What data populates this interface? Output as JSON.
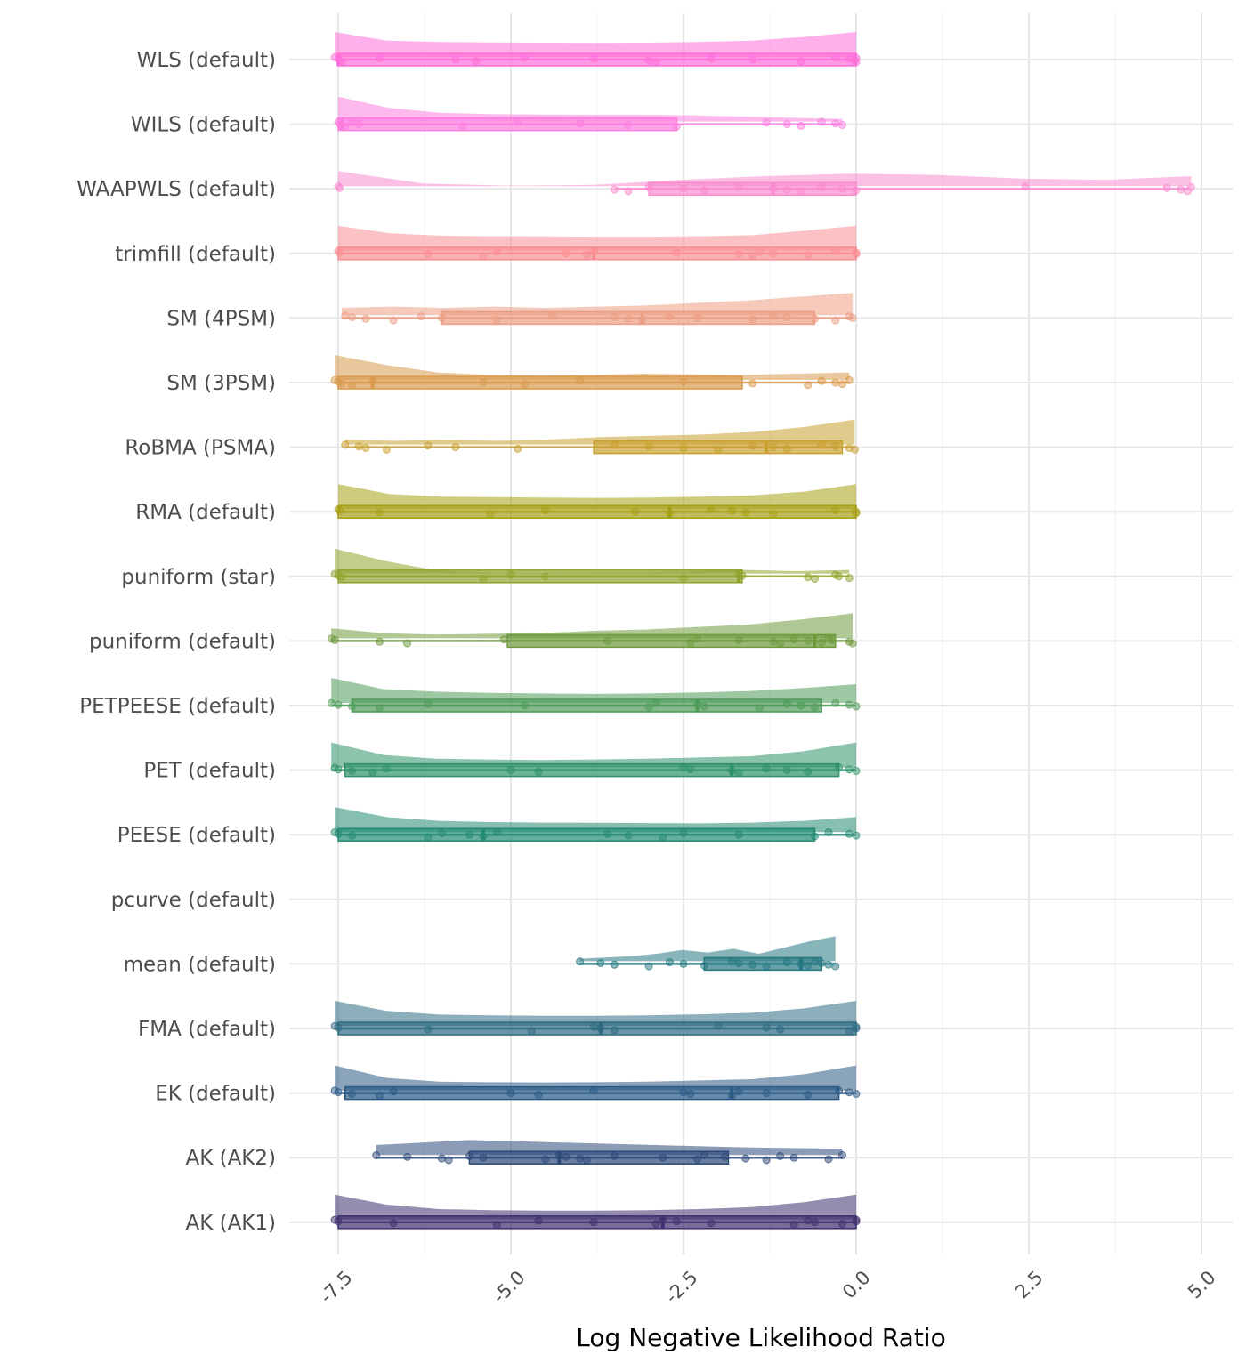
{
  "chart_data": {
    "type": "raincloud",
    "title": "",
    "xlabel": "Log Negative Likelihood Ratio",
    "ylabel": "",
    "xlim": [
      -8.0,
      5.4
    ],
    "x_ticks": [
      -7.5,
      -5.0,
      -2.5,
      0.0,
      2.5,
      5.0
    ],
    "x_tick_labels": [
      "-7.5",
      "-5.0",
      "-2.5",
      "0.0",
      "2.5",
      "5.0"
    ],
    "grid": true,
    "categories": [
      {
        "name": "WLS (default)",
        "color": "#FF6ED8",
        "min": -7.55,
        "q1": -7.5,
        "median": -7.5,
        "q3": 0.0,
        "max": 0.0,
        "density": [
          1.0,
          0.65,
          0.6,
          0.58,
          0.57,
          0.56,
          0.57,
          0.6,
          0.65,
          0.8,
          1.0
        ],
        "points": [
          -7.55,
          -7.5,
          -7.48,
          -7.45,
          -6.9,
          -5.8,
          -5.5,
          -4.8,
          -3.8,
          -3.0,
          -2.9,
          -2.1,
          -1.5,
          -0.8,
          -0.3,
          -0.1,
          -0.02,
          0.0,
          0.0
        ]
      },
      {
        "name": "WILS (default)",
        "color": "#FC7DDF",
        "min": -7.5,
        "q1": -7.5,
        "median": -7.45,
        "q3": -2.6,
        "max": -0.2,
        "density": [
          1.0,
          0.55,
          0.35,
          0.3,
          0.28,
          0.27,
          0.27,
          0.25,
          0.2,
          0.15,
          0.1
        ],
        "points": [
          -7.5,
          -7.48,
          -7.45,
          -7.4,
          -7.3,
          -7.2,
          -5.7,
          -4.9,
          -4.0,
          -3.3,
          -2.6,
          -1.3,
          -1.0,
          -0.8,
          -0.5,
          -0.3,
          -0.2
        ]
      },
      {
        "name": "WAAPWLS (default)",
        "color": "#FA8ACF",
        "min": -3.5,
        "q1": -3.0,
        "median": -1.2,
        "q3": 0.0,
        "max": 4.8,
        "density": [
          0.6,
          0.1,
          0.02,
          0.05,
          0.25,
          0.4,
          0.5,
          0.45,
          0.3,
          0.25,
          0.4
        ],
        "points": [
          -7.5,
          -7.48,
          -3.5,
          -3.3,
          -3.0,
          -2.5,
          -2.2,
          -1.7,
          -1.2,
          -1.0,
          -0.8,
          -0.5,
          -0.2,
          0.0,
          2.45,
          4.5,
          4.7,
          4.8,
          4.85
        ]
      },
      {
        "name": "trimfill (default)",
        "color": "#F98E93",
        "min": -7.5,
        "q1": -7.5,
        "median": -3.8,
        "q3": 0.0,
        "max": 0.0,
        "density": [
          1.0,
          0.7,
          0.6,
          0.58,
          0.57,
          0.56,
          0.56,
          0.58,
          0.62,
          0.8,
          1.0
        ],
        "points": [
          -7.5,
          -7.48,
          -6.2,
          -5.4,
          -5.2,
          -4.2,
          -3.9,
          -3.8,
          -2.6,
          -1.7,
          -1.5,
          -1.4,
          -1.2,
          -0.7,
          -0.3,
          0.0,
          0.0
        ]
      },
      {
        "name": "SM (4PSM)",
        "color": "#EC9E84",
        "min": -7.45,
        "q1": -6.0,
        "median": -3.1,
        "q3": -0.6,
        "max": -0.05,
        "density": [
          0.3,
          0.35,
          0.3,
          0.35,
          0.3,
          0.35,
          0.4,
          0.5,
          0.6,
          0.75,
          0.9
        ],
        "points": [
          -7.4,
          -7.3,
          -7.1,
          -6.7,
          -6.3,
          -6.0,
          -5.2,
          -4.4,
          -3.5,
          -3.3,
          -3.1,
          -2.7,
          -2.3,
          -1.5,
          -1.2,
          -1.0,
          -0.6,
          -0.3,
          -0.1,
          -0.05
        ]
      },
      {
        "name": "SM (3PSM)",
        "color": "#D99A4F",
        "min": -7.55,
        "q1": -7.5,
        "median": -7.0,
        "q3": -1.65,
        "max": -0.1,
        "density": [
          1.0,
          0.6,
          0.3,
          0.2,
          0.18,
          0.2,
          0.25,
          0.22,
          0.2,
          0.25,
          0.3
        ],
        "points": [
          -7.55,
          -7.5,
          -7.45,
          -7.3,
          -7.0,
          -5.4,
          -4.8,
          -4.0,
          -2.5,
          -1.5,
          -0.7,
          -0.5,
          -0.3,
          -0.2,
          -0.1
        ]
      },
      {
        "name": "RoBMA (PSMA)",
        "color": "#C9A02E",
        "min": -7.4,
        "q1": -3.8,
        "median": -1.3,
        "q3": -0.2,
        "max": -0.02,
        "density": [
          0.2,
          0.15,
          0.2,
          0.15,
          0.2,
          0.3,
          0.35,
          0.4,
          0.5,
          0.7,
          1.0
        ],
        "points": [
          -7.4,
          -7.2,
          -7.1,
          -6.8,
          -6.2,
          -5.8,
          -4.9,
          -3.5,
          -3.0,
          -2.5,
          -2.0,
          -1.5,
          -1.2,
          -1.0,
          -0.5,
          -0.3,
          -0.1,
          -0.02
        ]
      },
      {
        "name": "RMA (default)",
        "color": "#A6A016",
        "min": -7.5,
        "q1": -7.5,
        "median": -2.7,
        "q3": 0.0,
        "max": 0.0,
        "density": [
          1.0,
          0.6,
          0.5,
          0.48,
          0.46,
          0.45,
          0.46,
          0.5,
          0.55,
          0.7,
          1.0
        ],
        "points": [
          -7.5,
          -7.48,
          -6.9,
          -5.3,
          -4.5,
          -3.2,
          -2.7,
          -2.1,
          -1.8,
          -1.6,
          -1.2,
          -0.3,
          0.0,
          0.0
        ]
      },
      {
        "name": "puniform (star)",
        "color": "#8FA42E",
        "min": -7.55,
        "q1": -7.5,
        "median": -1.7,
        "q3": -1.65,
        "max": -0.1,
        "density": [
          1.0,
          0.5,
          0.12,
          0.05,
          0.04,
          0.05,
          0.05,
          0.1,
          0.15,
          0.1,
          0.15
        ],
        "points": [
          -7.55,
          -7.5,
          -7.45,
          -5.4,
          -5.0,
          -4.5,
          -2.5,
          -1.7,
          -1.65,
          -0.7,
          -0.6,
          -0.3,
          -0.25,
          -0.1
        ]
      },
      {
        "name": "puniform (default)",
        "color": "#6E9A3C",
        "min": -7.6,
        "q1": -5.05,
        "median": -0.6,
        "q3": -0.3,
        "max": -0.05,
        "density": [
          0.4,
          0.2,
          0.15,
          0.18,
          0.2,
          0.3,
          0.35,
          0.45,
          0.55,
          0.75,
          1.0
        ],
        "points": [
          -7.6,
          -7.55,
          -6.9,
          -6.5,
          -5.1,
          -3.6,
          -2.4,
          -2.3,
          -1.7,
          -1.2,
          -1.1,
          -0.9,
          -0.7,
          -0.5,
          -0.4,
          -0.35,
          -0.1,
          -0.05
        ]
      },
      {
        "name": "PETPEESE (default)",
        "color": "#4E9A58",
        "min": -7.6,
        "q1": -7.3,
        "median": -2.3,
        "q3": -0.5,
        "max": 0.0,
        "density": [
          1.0,
          0.55,
          0.45,
          0.4,
          0.38,
          0.36,
          0.38,
          0.42,
          0.48,
          0.6,
          0.75
        ],
        "points": [
          -7.6,
          -7.5,
          -7.3,
          -6.9,
          -6.2,
          -4.8,
          -3.0,
          -2.9,
          -2.3,
          -2.2,
          -1.4,
          -1.0,
          -0.8,
          -0.6,
          -0.3,
          -0.1,
          0.0
        ]
      },
      {
        "name": "PET (default)",
        "color": "#2E9268",
        "min": -7.6,
        "q1": -7.4,
        "median": -1.8,
        "q3": -0.25,
        "max": 0.0,
        "density": [
          1.0,
          0.5,
          0.35,
          0.32,
          0.3,
          0.32,
          0.35,
          0.4,
          0.45,
          0.65,
          1.0
        ],
        "points": [
          -7.55,
          -7.5,
          -7.3,
          -7.0,
          -6.8,
          -5.0,
          -4.6,
          -2.5,
          -2.4,
          -1.8,
          -1.7,
          -1.3,
          -1.0,
          -0.7,
          -0.25,
          -0.1,
          0.0
        ]
      },
      {
        "name": "PEESE (default)",
        "color": "#238A72",
        "min": -7.55,
        "q1": -7.5,
        "median": -5.4,
        "q3": -0.6,
        "max": 0.0,
        "density": [
          1.0,
          0.6,
          0.45,
          0.4,
          0.38,
          0.37,
          0.36,
          0.35,
          0.38,
          0.45,
          0.6
        ],
        "points": [
          -7.55,
          -7.5,
          -7.3,
          -6.2,
          -6.0,
          -5.6,
          -5.4,
          -5.2,
          -3.6,
          -3.3,
          -2.8,
          -2.5,
          -1.7,
          -0.6,
          -0.4,
          -0.1,
          0.0
        ]
      },
      {
        "name": "pcurve (default)",
        "color": "#1D8080",
        "min": null,
        "q1": null,
        "median": null,
        "q3": null,
        "max": null,
        "density": [],
        "points": []
      },
      {
        "name": "mean (default)",
        "color": "#267882",
        "min": -4.0,
        "q1": -2.2,
        "median": -0.8,
        "q3": -0.5,
        "max": -0.3,
        "density": [
          0.1,
          0.15,
          0.2,
          0.3,
          0.45,
          0.35,
          0.5,
          0.3,
          0.55,
          0.8,
          1.0
        ],
        "points": [
          -4.0,
          -3.7,
          -3.5,
          -3.0,
          -2.7,
          -2.5,
          -2.2,
          -1.8,
          -1.7,
          -1.5,
          -1.3,
          -1.0,
          -0.8,
          -0.7,
          -0.6,
          -0.5,
          -0.4,
          -0.3
        ]
      },
      {
        "name": "FMA (default)",
        "color": "#2E6A82",
        "min": -7.55,
        "q1": -7.5,
        "median": -3.7,
        "q3": 0.0,
        "max": 0.0,
        "density": [
          1.0,
          0.6,
          0.45,
          0.42,
          0.4,
          0.4,
          0.42,
          0.46,
          0.52,
          0.7,
          1.0
        ],
        "points": [
          -7.55,
          -7.5,
          -6.2,
          -4.7,
          -3.8,
          -3.7,
          -3.5,
          -2.0,
          -1.3,
          -1.1,
          -0.1,
          0.0,
          0.0
        ]
      },
      {
        "name": "EK (default)",
        "color": "#295985",
        "min": -7.55,
        "q1": -7.4,
        "median": -1.8,
        "q3": -0.25,
        "max": 0.0,
        "density": [
          1.0,
          0.5,
          0.35,
          0.33,
          0.32,
          0.33,
          0.35,
          0.4,
          0.45,
          0.65,
          1.0
        ],
        "points": [
          -7.55,
          -7.5,
          -7.3,
          -6.9,
          -6.7,
          -5.0,
          -4.6,
          -3.8,
          -2.5,
          -2.4,
          -1.8,
          -1.7,
          -1.3,
          -0.7,
          -0.25,
          -0.1,
          0.0
        ]
      },
      {
        "name": "AK (AK2)",
        "color": "#2D4A7A",
        "min": -6.95,
        "q1": -5.6,
        "median": -4.3,
        "q3": -1.85,
        "max": -0.2,
        "density": [
          0.4,
          0.5,
          0.6,
          0.55,
          0.5,
          0.45,
          0.4,
          0.35,
          0.3,
          0.28,
          0.25
        ],
        "points": [
          -6.95,
          -6.5,
          -6.0,
          -5.9,
          -5.6,
          -5.4,
          -4.5,
          -4.3,
          -4.2,
          -4.0,
          -3.9,
          -3.5,
          -2.8,
          -2.3,
          -2.2,
          -1.9,
          -1.6,
          -1.3,
          -1.1,
          -0.9,
          -0.4,
          -0.2
        ]
      },
      {
        "name": "AK (AK1)",
        "color": "#3E2F6E",
        "min": -7.55,
        "q1": -7.5,
        "median": -2.8,
        "q3": 0.0,
        "max": 0.0,
        "density": [
          1.0,
          0.6,
          0.42,
          0.38,
          0.36,
          0.36,
          0.38,
          0.42,
          0.5,
          0.7,
          1.0
        ],
        "points": [
          -7.55,
          -7.5,
          -6.7,
          -5.2,
          -4.6,
          -3.8,
          -2.9,
          -2.8,
          -2.6,
          -2.1,
          -0.9,
          -0.7,
          -0.6,
          -0.2,
          0.0,
          0.0
        ]
      }
    ]
  }
}
